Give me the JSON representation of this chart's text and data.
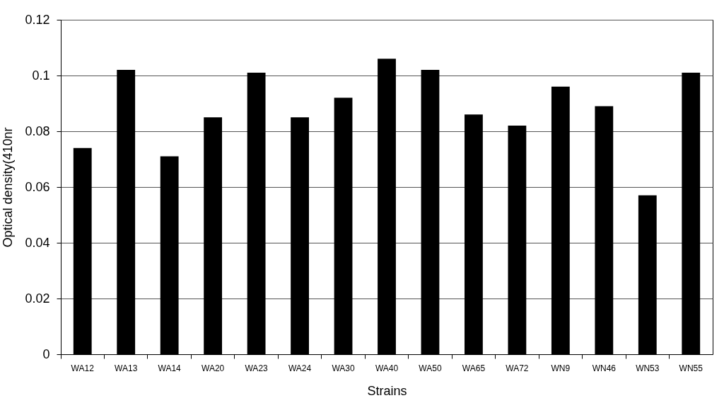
{
  "chart_data": {
    "type": "bar",
    "xlabel": "Strains",
    "ylabel": "Optical density(410nr",
    "categories": [
      "WA12",
      "WA13",
      "WA14",
      "WA20",
      "WA23",
      "WA24",
      "WA30",
      "WA40",
      "WA50",
      "WA65",
      "WA72",
      "WN9",
      "WN46",
      "WN53",
      "WN55"
    ],
    "values": [
      0.074,
      0.102,
      0.071,
      0.085,
      0.101,
      0.085,
      0.092,
      0.106,
      0.102,
      0.086,
      0.082,
      0.096,
      0.089,
      0.057,
      0.101
    ],
    "color": "#000000",
    "ylim": [
      0,
      0.12
    ],
    "yticks": [
      0,
      0.02,
      0.04,
      0.06,
      0.08,
      0.1,
      0.12
    ],
    "grid": "y"
  }
}
